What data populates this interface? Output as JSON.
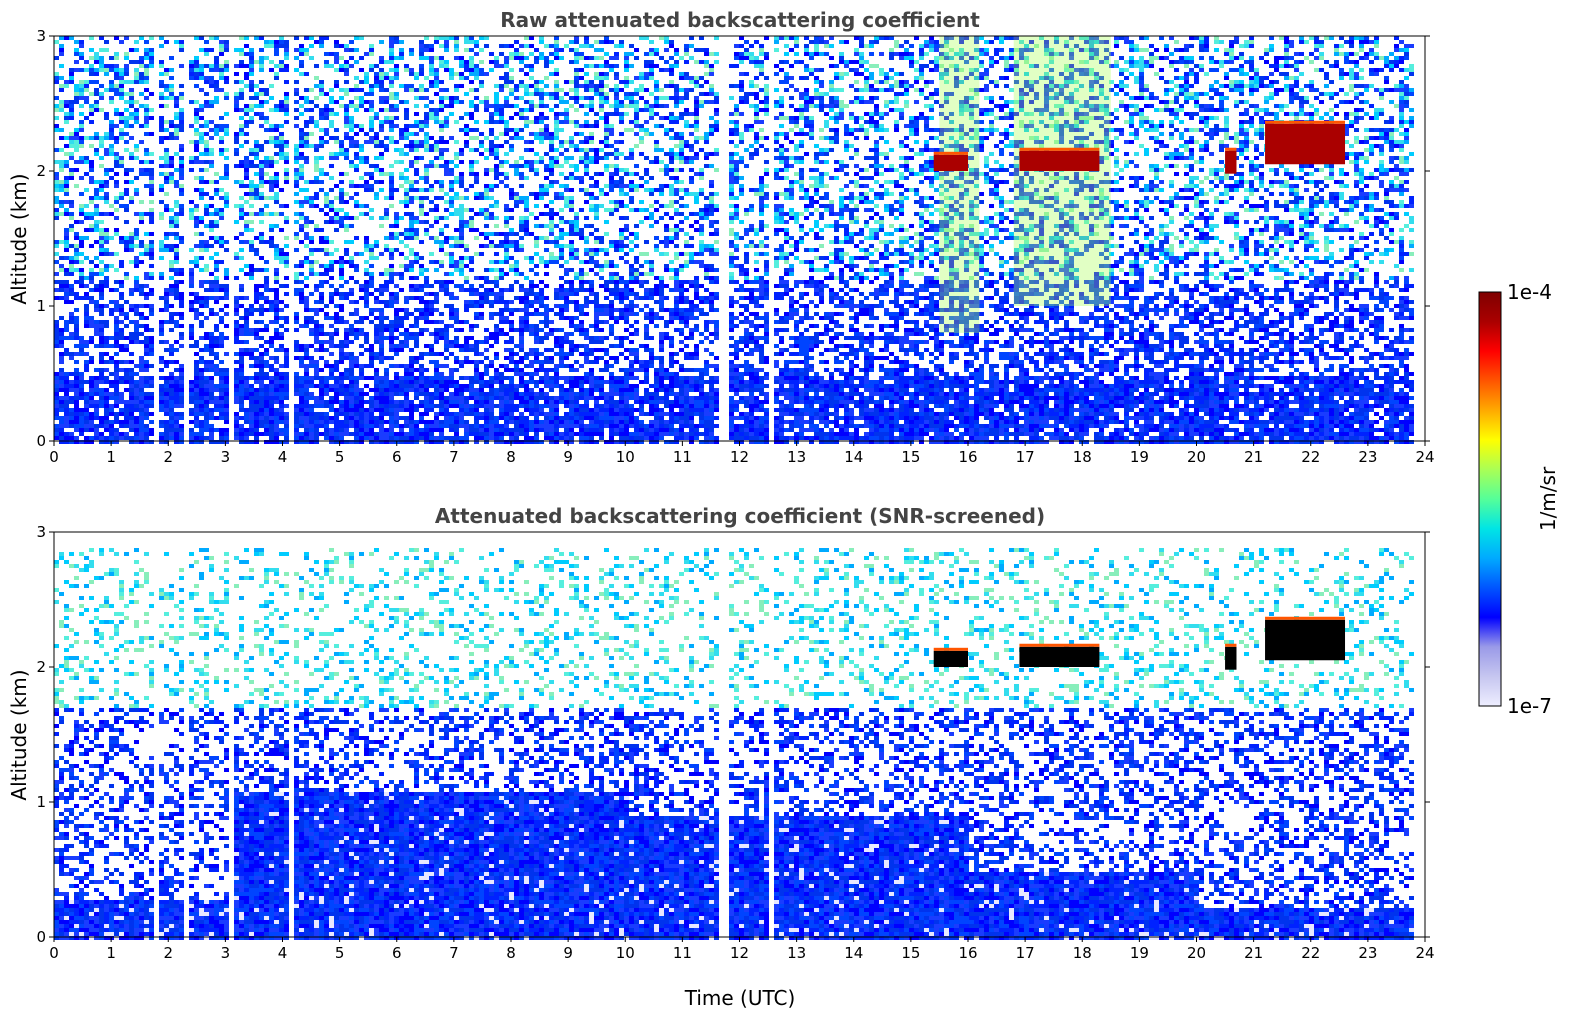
{
  "chart_data": [
    {
      "type": "heatmap",
      "title": "Raw attenuated backscattering coefficient",
      "xlabel": "",
      "ylabel": "Altitude (km)",
      "xlim": [
        0,
        24
      ],
      "ylim": [
        0,
        3
      ],
      "x_ticks": [
        "0",
        "1",
        "2",
        "3",
        "4",
        "5",
        "6",
        "7",
        "8",
        "9",
        "10",
        "11",
        "12",
        "13",
        "14",
        "15",
        "16",
        "17",
        "18",
        "19",
        "20",
        "21",
        "22",
        "23",
        "24"
      ],
      "y_ticks": [
        "0",
        "1",
        "2",
        "3"
      ],
      "data_end_time": 23.8,
      "background_noise": "blue near ground (0-0.5 km), lighter scattered blue/cyan speckle above",
      "data_gaps": [
        [
          1.15,
          1.2
        ],
        [
          1.7,
          1.8
        ],
        [
          2.2,
          2.35
        ],
        [
          3.05,
          3.15
        ],
        [
          4.1,
          4.2
        ],
        [
          11.5,
          11.55
        ],
        [
          11.6,
          11.75
        ],
        [
          12.45,
          12.55
        ]
      ],
      "cloud_layers": [
        {
          "start": 15.4,
          "end": 16.0,
          "base_km": 2.0,
          "top_km": 2.12
        },
        {
          "start": 16.9,
          "end": 18.3,
          "base_km": 2.0,
          "top_km": 2.15
        },
        {
          "start": 20.5,
          "end": 20.7,
          "base_km": 1.98,
          "top_km": 2.15
        },
        {
          "start": 21.2,
          "end": 22.6,
          "base_km": 2.05,
          "top_km": 2.35
        }
      ],
      "aerosol_plumes": [
        {
          "start": 15.5,
          "end": 16.2,
          "base_km": 0.8,
          "top_km": 3.0
        },
        {
          "start": 16.8,
          "end": 18.5,
          "base_km": 1.0,
          "top_km": 3.0
        }
      ]
    },
    {
      "type": "heatmap",
      "title": "Attenuated backscattering coefficient (SNR-screened)",
      "xlabel": "Time (UTC)",
      "ylabel": "Altitude (km)",
      "xlim": [
        0,
        24
      ],
      "ylim": [
        0,
        3
      ],
      "x_ticks": [
        "0",
        "1",
        "2",
        "3",
        "4",
        "5",
        "6",
        "7",
        "8",
        "9",
        "10",
        "11",
        "12",
        "13",
        "14",
        "15",
        "16",
        "17",
        "18",
        "19",
        "20",
        "21",
        "22",
        "23",
        "24"
      ],
      "y_ticks": [
        "0",
        "1",
        "2",
        "3"
      ],
      "data_end_time": 23.8,
      "boundary_layer": [
        {
          "start": 0,
          "end": 3,
          "top_km": 0.3
        },
        {
          "start": 3,
          "end": 10,
          "top_km": 1.1
        },
        {
          "start": 10,
          "end": 16,
          "top_km": 0.9
        },
        {
          "start": 16,
          "end": 20,
          "top_km": 0.5
        },
        {
          "start": 20,
          "end": 23.8,
          "top_km": 0.22
        }
      ],
      "data_gaps": [
        [
          1.15,
          1.2
        ],
        [
          1.7,
          1.8
        ],
        [
          2.2,
          2.35
        ],
        [
          3.05,
          3.15
        ],
        [
          4.1,
          4.2
        ],
        [
          11.5,
          11.55
        ],
        [
          11.6,
          11.75
        ],
        [
          12.45,
          12.55
        ]
      ],
      "cloud_layers": [
        {
          "start": 15.4,
          "end": 16.0,
          "base_km": 2.0,
          "top_km": 2.12
        },
        {
          "start": 16.9,
          "end": 18.3,
          "base_km": 2.0,
          "top_km": 2.15
        },
        {
          "start": 20.5,
          "end": 20.7,
          "base_km": 1.98,
          "top_km": 2.15
        },
        {
          "start": 21.2,
          "end": 22.6,
          "base_km": 2.05,
          "top_km": 2.35
        }
      ]
    }
  ],
  "colorbar": {
    "max_label": "1e-4",
    "min_label": "1e-7",
    "unit_label": "1/m/sr",
    "colormap": "jet",
    "colors": [
      "#eeeeff",
      "#c6c6f0",
      "#9a9ae8",
      "#0000ff",
      "#0055ff",
      "#00aaff",
      "#00e5e5",
      "#55ff99",
      "#aaff55",
      "#ffff00",
      "#ffaa00",
      "#ff5500",
      "#ff0000",
      "#aa0000",
      "#7f0000"
    ]
  }
}
